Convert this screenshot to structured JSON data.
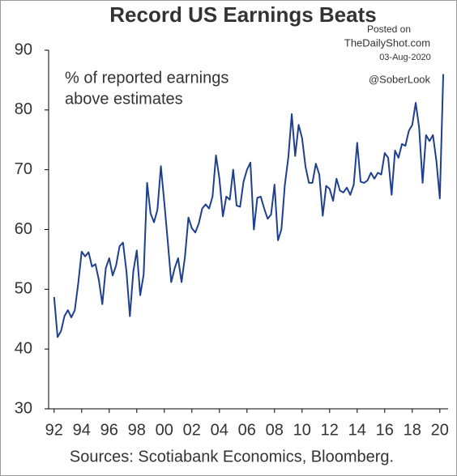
{
  "chart_data": {
    "type": "line",
    "title": "Record US Earnings Beats",
    "annotation": [
      "% of reported earnings",
      "above estimates"
    ],
    "watermark": [
      "Posted on",
      "TheDailyShot.com",
      "03-Aug-2020",
      "@SoberLook"
    ],
    "source": "Sources: Scotiabank Economics,  Bloomberg.",
    "x": [
      1992,
      1992.25,
      1992.5,
      1992.75,
      1993,
      1993.25,
      1993.5,
      1993.75,
      1994,
      1994.25,
      1994.5,
      1994.75,
      1995,
      1995.25,
      1995.5,
      1995.75,
      1996,
      1996.25,
      1996.5,
      1996.75,
      1997,
      1997.25,
      1997.5,
      1997.75,
      1998,
      1998.25,
      1998.5,
      1998.75,
      1999,
      1999.25,
      1999.5,
      1999.75,
      2000,
      2000.25,
      2000.5,
      2000.75,
      2001,
      2001.25,
      2001.5,
      2001.75,
      2002,
      2002.25,
      2002.5,
      2002.75,
      2003,
      2003.25,
      2003.5,
      2003.75,
      2004,
      2004.25,
      2004.5,
      2004.75,
      2005,
      2005.25,
      2005.5,
      2005.75,
      2006,
      2006.25,
      2006.5,
      2006.75,
      2007,
      2007.25,
      2007.5,
      2007.75,
      2008,
      2008.25,
      2008.5,
      2008.75,
      2009,
      2009.25,
      2009.5,
      2009.75,
      2010,
      2010.25,
      2010.5,
      2010.75,
      2011,
      2011.25,
      2011.5,
      2011.75,
      2012,
      2012.25,
      2012.5,
      2012.75,
      2013,
      2013.25,
      2013.5,
      2013.75,
      2014,
      2014.25,
      2014.5,
      2014.75,
      2015,
      2015.25,
      2015.5,
      2015.75,
      2016,
      2016.25,
      2016.5,
      2016.75,
      2017,
      2017.25,
      2017.5,
      2017.75,
      2018,
      2018.25,
      2018.5,
      2018.75,
      2019,
      2019.25,
      2019.5,
      2019.75,
      2020,
      2020.25
    ],
    "series": [
      {
        "name": "% of reported earnings above estimates",
        "color": "#1f3f8f",
        "values": [
          48.7,
          42,
          43,
          45.5,
          46.5,
          45.3,
          46.5,
          51,
          56.3,
          55.5,
          56.2,
          53.8,
          54.2,
          51.5,
          47.5,
          53.5,
          55.2,
          52.3,
          54,
          57.2,
          57.8,
          53,
          45.5,
          53,
          56.5,
          49,
          52.5,
          67.8,
          62.7,
          61.2,
          63.3,
          70.6,
          64.5,
          58,
          51.2,
          53.5,
          55.2,
          51.2,
          55.5,
          62,
          60.2,
          59.5,
          61,
          63.5,
          64.2,
          63.5,
          65.5,
          72.4,
          68.5,
          62.2,
          65.5,
          65,
          70,
          64,
          63.8,
          68,
          70,
          71.2,
          60,
          65.3,
          65.5,
          63.5,
          61.8,
          62.5,
          67.5,
          58.2,
          60,
          67.5,
          72,
          79.3,
          72.3,
          77.5,
          75.3,
          70.5,
          67.8,
          67.8,
          71,
          69.2,
          62.3,
          67.3,
          66.8,
          64.8,
          68.5,
          66.5,
          66.2,
          67,
          65.8,
          67.5,
          74.5,
          68,
          67.8,
          68.2,
          69.5,
          68.5,
          69.5,
          69.2,
          72.8,
          72,
          65.8,
          73.2,
          72,
          74.3,
          74,
          76.5,
          77.5,
          81.2,
          77,
          67.8,
          75.8,
          74.8,
          75.8,
          71.5,
          65.2,
          86
        ]
      }
    ],
    "xlim": [
      1991.6,
      2020.6
    ],
    "xticks": [
      {
        "value": 1992,
        "label": "92"
      },
      {
        "value": 1994,
        "label": "94"
      },
      {
        "value": 1996,
        "label": "96"
      },
      {
        "value": 1998,
        "label": "98"
      },
      {
        "value": 2000,
        "label": "00"
      },
      {
        "value": 2002,
        "label": "02"
      },
      {
        "value": 2004,
        "label": "04"
      },
      {
        "value": 2006,
        "label": "06"
      },
      {
        "value": 2008,
        "label": "08"
      },
      {
        "value": 2010,
        "label": "10"
      },
      {
        "value": 2012,
        "label": "12"
      },
      {
        "value": 2014,
        "label": "14"
      },
      {
        "value": 2016,
        "label": "16"
      },
      {
        "value": 2018,
        "label": "18"
      },
      {
        "value": 2020,
        "label": "20"
      }
    ],
    "ylim": [
      30,
      90
    ],
    "yticks": [
      30,
      40,
      50,
      60,
      70,
      80,
      90
    ],
    "grid": false
  }
}
